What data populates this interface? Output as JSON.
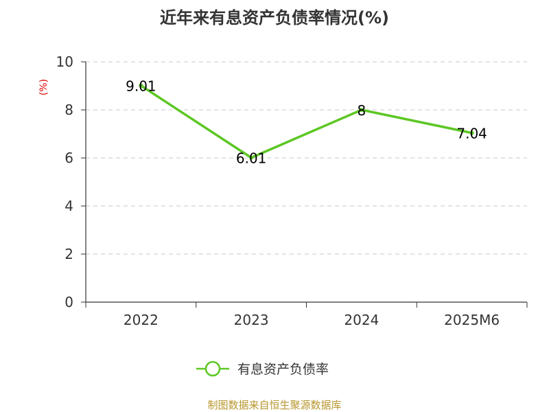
{
  "chart_data": {
    "type": "line",
    "title": "近年来有息资产负债率情况(%)",
    "ylabel": "(%)",
    "xlabel": "",
    "categories": [
      "2022",
      "2023",
      "2024",
      "2025M6"
    ],
    "series": [
      {
        "name": "有息资产负债率",
        "values": [
          9.01,
          6.01,
          8,
          7.04
        ],
        "labels": [
          "9.01",
          "6.01",
          "8",
          "7.04"
        ]
      }
    ],
    "ylim": [
      0,
      10
    ],
    "yticks": [
      "0",
      "2",
      "4",
      "6",
      "8",
      "10"
    ],
    "grid": true,
    "legend_position": "bottom"
  },
  "footer": {
    "source": "制图数据来自恒生聚源数据库"
  },
  "colors": {
    "line": "#5cc723",
    "ylabel": "#e00000",
    "source": "#b8962e",
    "grid": "#c8c8c8",
    "axis": "#333333"
  }
}
